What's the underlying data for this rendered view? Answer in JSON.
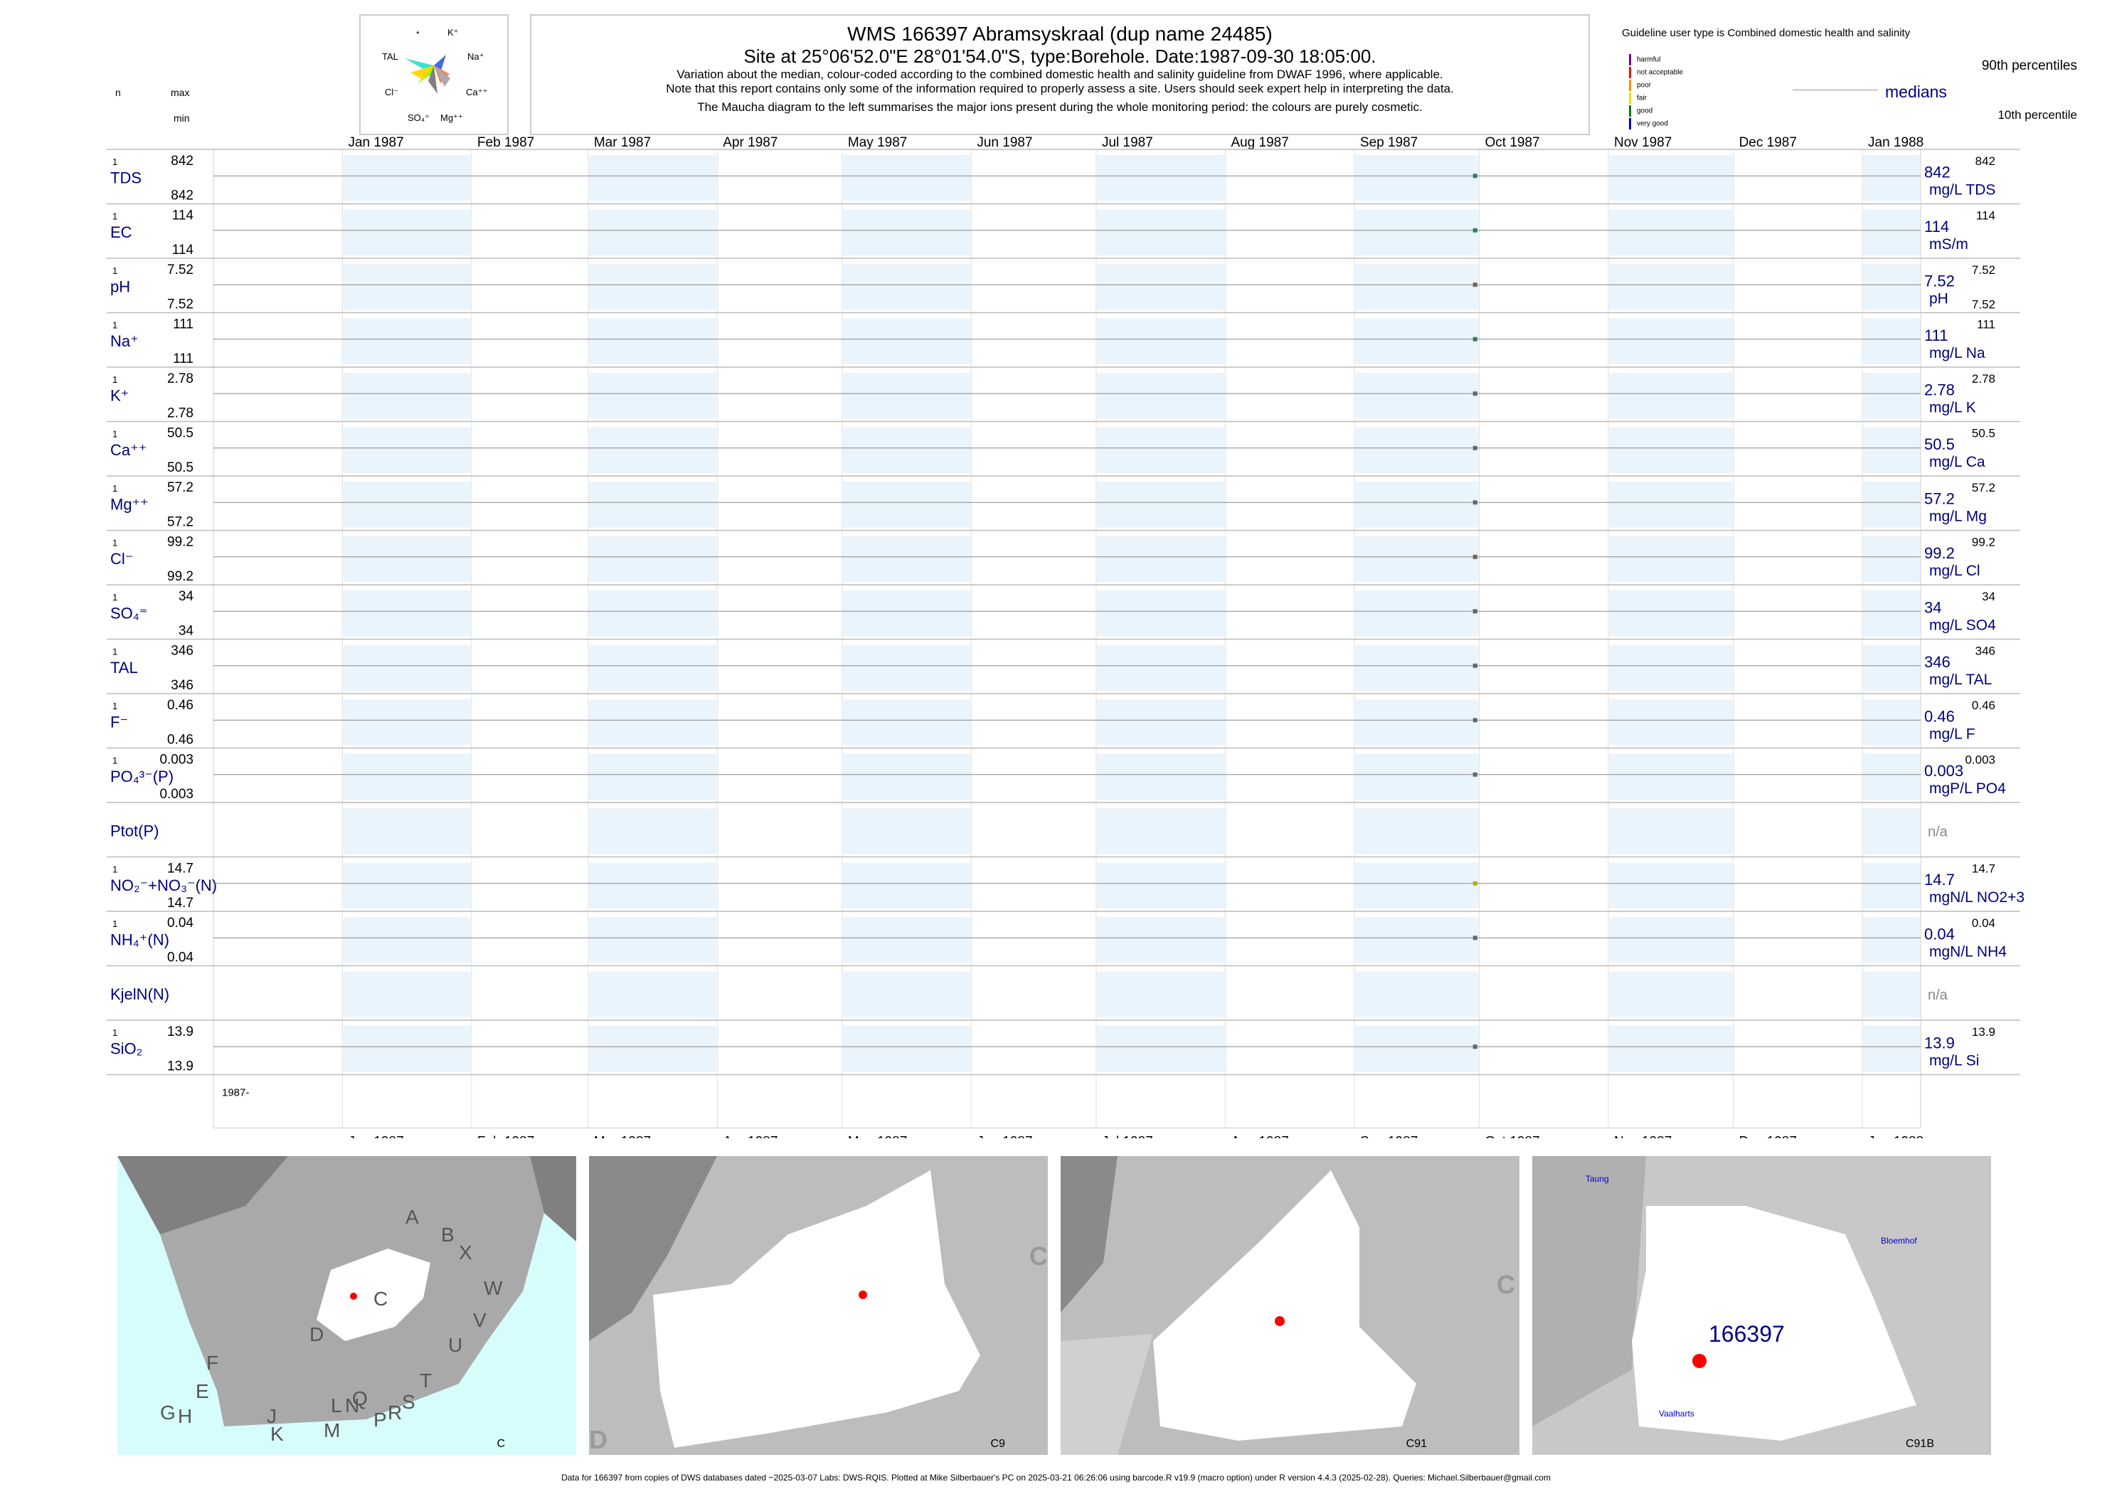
{
  "header": {
    "title": "WMS 166397  Abramsyskraal (dup name 24485)",
    "subtitle": "Site at 25°06'52.0\"E 28°01'54.0\"S, type:Borehole. Date:1987-09-30 18:05:00.",
    "notes": [
      "Variation about the median,  colour-coded according to the combined domestic health and salinity guideline from DWAF 1996, where applicable.",
      "Note that this report contains only some of the information required to properly assess a site. Users should seek expert help in interpreting the data.",
      "The Maucha diagram to the left summarises the major ions present during the whole monitoring period: the colours are purely cosmetic."
    ],
    "col_n": "n",
    "col_max": "max",
    "col_min": "min"
  },
  "maucha": {
    "labels": {
      "star": "*",
      "k": "K⁺",
      "tal": "TAL",
      "na": "Na⁺",
      "cl": "Cl⁻",
      "ca": "Ca⁺⁺",
      "so4": "SO₄⁼",
      "mg": "Mg⁺⁺"
    }
  },
  "legend": {
    "guideline": "Guideline user type is Combined domestic health and salinity",
    "classes": [
      {
        "label": "harmful",
        "color": "#800080"
      },
      {
        "label": "not acceptable",
        "color": "#ff0000"
      },
      {
        "label": "poor",
        "color": "#ff8c00"
      },
      {
        "label": "fair",
        "color": "#ffd700"
      },
      {
        "label": "good",
        "color": "#008000"
      },
      {
        "label": "very good",
        "color": "#0000cd"
      }
    ],
    "p90": "90th percentiles",
    "medians": "medians",
    "p10": "10th percentile"
  },
  "chart_data": {
    "type": "scatter",
    "x_ticks": [
      "Jan 1987",
      "Feb 1987",
      "Mar 1987",
      "Apr 1987",
      "May 1987",
      "Jun 1987",
      "Jul 1987",
      "Aug 1987",
      "Sep 1987",
      "Oct 1987",
      "Nov 1987",
      "Dec 1987",
      "Jan 1988"
    ],
    "x_range": [
      "1986-12-01",
      "1988-01-15"
    ],
    "year_label": "1987-",
    "sample_date": "1987-09-30",
    "series": [
      {
        "name": "TDS",
        "n": "1",
        "max": "842",
        "min": "842",
        "median": "842",
        "unit": "mg/L TDS",
        "p90": "842",
        "p10": "",
        "value": 842,
        "color": "#2e7d5b"
      },
      {
        "name": "EC",
        "n": "1",
        "max": "114",
        "min": "114",
        "median": "114",
        "unit": "mS/m",
        "p90": "114",
        "p10": "",
        "value": 114,
        "color": "#2e7d5b"
      },
      {
        "name": "pH",
        "n": "1",
        "max": "7.52",
        "min": "7.52",
        "median": "7.52",
        "unit": "pH",
        "p90": "7.52",
        "p10": "7.52",
        "value": 7.52,
        "color": "#666666"
      },
      {
        "name": "Na⁺",
        "n": "1",
        "max": "111",
        "min": "111",
        "median": "111",
        "unit": "mg/L Na",
        "p90": "111",
        "p10": "",
        "value": 111,
        "color": "#2e7d5b"
      },
      {
        "name": "K⁺",
        "n": "1",
        "max": "2.78",
        "min": "2.78",
        "median": "2.78",
        "unit": "mg/L K",
        "p90": "2.78",
        "p10": "",
        "value": 2.78,
        "color": "#666666"
      },
      {
        "name": "Ca⁺⁺",
        "n": "1",
        "max": "50.5",
        "min": "50.5",
        "median": "50.5",
        "unit": "mg/L Ca",
        "p90": "50.5",
        "p10": "",
        "value": 50.5,
        "color": "#666666"
      },
      {
        "name": "Mg⁺⁺",
        "n": "1",
        "max": "57.2",
        "min": "57.2",
        "median": "57.2",
        "unit": "mg/L Mg",
        "p90": "57.2",
        "p10": "",
        "value": 57.2,
        "color": "#666666"
      },
      {
        "name": "Cl⁻",
        "n": "1",
        "max": "99.2",
        "min": "99.2",
        "median": "99.2",
        "unit": "mg/L Cl",
        "p90": "99.2",
        "p10": "",
        "value": 99.2,
        "color": "#666666"
      },
      {
        "name": "SO₄⁼",
        "n": "1",
        "max": "34",
        "min": "34",
        "median": "34",
        "unit": "mg/L SO4",
        "p90": "34",
        "p10": "",
        "value": 34,
        "color": "#666666"
      },
      {
        "name": "TAL",
        "n": "1",
        "max": "346",
        "min": "346",
        "median": "346",
        "unit": "mg/L TAL",
        "p90": "346",
        "p10": "",
        "value": 346,
        "color": "#666666"
      },
      {
        "name": "F⁻",
        "n": "1",
        "max": "0.46",
        "min": "0.46",
        "median": "0.46",
        "unit": "mg/L F",
        "p90": "0.46",
        "p10": "",
        "value": 0.46,
        "color": "#666666"
      },
      {
        "name": "PO₄³⁻(P)",
        "n": "1",
        "max": "0.003",
        "min": "0.003",
        "median": "0.003",
        "unit": "mgP/L PO4",
        "p90": "0.003",
        "p10": "",
        "value": 0.003,
        "color": "#666666"
      },
      {
        "name": "Ptot(P)",
        "n": "",
        "max": "",
        "min": "",
        "median": "n/a",
        "unit": "",
        "p90": "",
        "p10": "",
        "value": null,
        "color": "#666666"
      },
      {
        "name": "NO₂⁻+NO₃⁻(N)",
        "n": "1",
        "max": "14.7",
        "min": "14.7",
        "median": "14.7",
        "unit": "mgN/L NO2+3",
        "p90": "14.7",
        "p10": "",
        "value": 14.7,
        "color": "#b5b000"
      },
      {
        "name": "NH₄⁺(N)",
        "n": "1",
        "max": "0.04",
        "min": "0.04",
        "median": "0.04",
        "unit": "mgN/L NH4",
        "p90": "0.04",
        "p10": "",
        "value": 0.04,
        "color": "#666666"
      },
      {
        "name": "KjelN(N)",
        "n": "",
        "max": "",
        "min": "",
        "median": "n/a",
        "unit": "",
        "p90": "",
        "p10": "",
        "value": null,
        "color": "#666666"
      },
      {
        "name": "SiO₂",
        "n": "1",
        "max": "13.9",
        "min": "13.9",
        "median": "13.9",
        "unit": "mg/L Si",
        "p90": "13.9",
        "p10": "",
        "value": 13.9,
        "color": "#666666"
      }
    ]
  },
  "maps": [
    {
      "caption": "C",
      "labels": [
        "A",
        "B",
        "X",
        "W",
        "C",
        "D",
        "V",
        "U",
        "T",
        "F",
        "E",
        "G",
        "H",
        "J",
        "K",
        "L",
        "N",
        "M",
        "Q",
        "P",
        "S",
        "R"
      ]
    },
    {
      "caption": "C9",
      "labels": [
        "C",
        "D"
      ]
    },
    {
      "caption": "C91",
      "labels": [
        "C"
      ]
    },
    {
      "caption": "C91B",
      "labels": [
        "Taung",
        "Bloemhof",
        "Vaalharts"
      ],
      "site": "166397"
    }
  ],
  "footer": "Data for 166397 from copies of DWS databases dated ~2025-03-07 Labs: DWS-RQIS. Plotted at Mike Silberbauer's PC on 2025-03-21 06:26:06 using barcode.R v19.9 (macro option) under R version 4.4.3 (2025-02-28). Queries: Michael.Silberbauer@gmail.com"
}
